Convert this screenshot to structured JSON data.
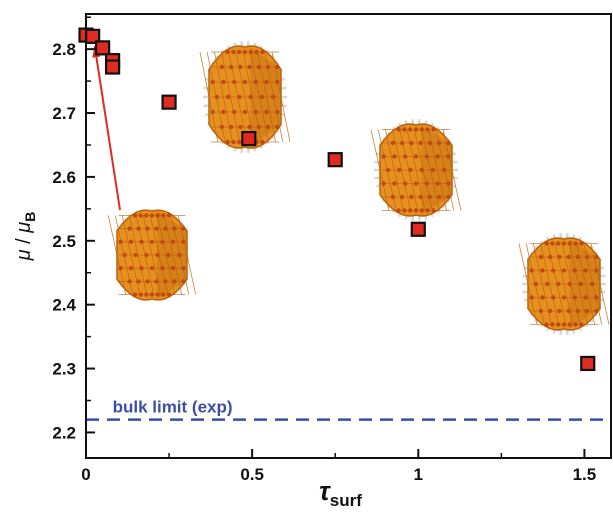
{
  "chart_data": {
    "type": "scatter",
    "title": "",
    "xlabel": "τ",
    "xlabel_sub": "surf",
    "ylabel_mu": "μ",
    "ylabel_sep": " / ",
    "ylabel_mub": "μ",
    "ylabel_sub": "B",
    "xlim": [
      0,
      1.58
    ],
    "ylim": [
      2.16,
      2.855
    ],
    "xticks": [
      0,
      0.5,
      1,
      1.5
    ],
    "xtick_labels": [
      "0",
      "0.5",
      "1",
      "1.5"
    ],
    "yticks": [
      2.2,
      2.3,
      2.4,
      2.5,
      2.6,
      2.7,
      2.8
    ],
    "ytick_labels": [
      "2.2",
      "2.3",
      "2.4",
      "2.5",
      "2.6",
      "2.7",
      "2.8"
    ],
    "grid": false,
    "series": [
      {
        "marker": "square",
        "color": "#e02b20",
        "edge_color": "#111111",
        "x": [
          0.0,
          0.02,
          0.05,
          0.08,
          0.08,
          0.25,
          0.49,
          0.75,
          1.0,
          1.51
        ],
        "y": [
          2.822,
          2.82,
          2.802,
          2.782,
          2.772,
          2.717,
          2.66,
          2.627,
          2.518,
          2.308
        ]
      }
    ],
    "reference_line": {
      "label": "bulk limit (exp)",
      "y": 2.22,
      "style": "dashed",
      "color": "#3a4ea8"
    },
    "arrow_color": "#e02b20",
    "particle_colors": {
      "face": "#e6911f",
      "shade": "#b8650d",
      "atom": "#c24a12",
      "ligand": "#d8d8d8"
    }
  }
}
